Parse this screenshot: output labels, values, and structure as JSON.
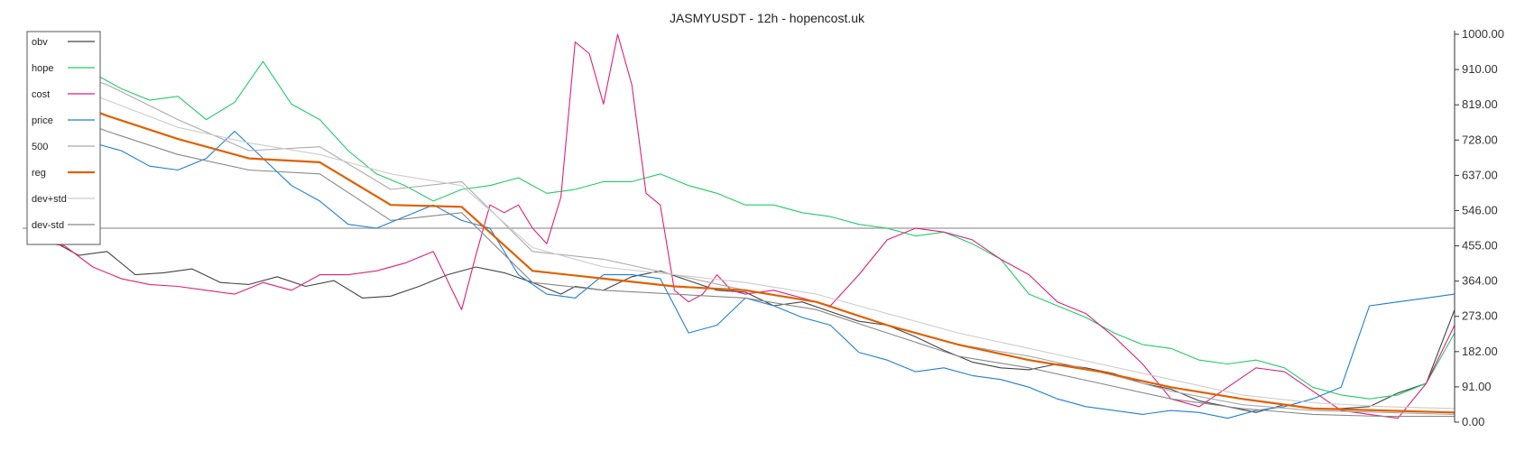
{
  "chart_data": {
    "type": "line",
    "title": "JASMYUSDT - 12h - hopencost.uk",
    "y_ticks": [
      "0.00",
      "91.00",
      "182.00",
      "273.00",
      "364.00",
      "455.00",
      "546.00",
      "637.00",
      "728.00",
      "819.00",
      "910.00",
      "1000.00"
    ],
    "ylim": [
      0,
      1000
    ],
    "xlim": [
      0,
      100
    ],
    "horizontal_line": 500,
    "legend_position": "top-left",
    "series": [
      {
        "name": "obv",
        "color": "#444444",
        "x": [
          0,
          1,
          3,
          5,
          7,
          9,
          11,
          13,
          15,
          17,
          19,
          21,
          23,
          25,
          27,
          29,
          31,
          33,
          35,
          37,
          38,
          40,
          42,
          44,
          46,
          48,
          50,
          52,
          54,
          56,
          58,
          60,
          62,
          64,
          66,
          68,
          70,
          72,
          74,
          76,
          78,
          80,
          82,
          84,
          86,
          88,
          90,
          92,
          94,
          96,
          98,
          100
        ],
        "y": [
          480,
          470,
          430,
          440,
          380,
          385,
          395,
          360,
          355,
          375,
          350,
          365,
          320,
          325,
          350,
          380,
          400,
          385,
          360,
          330,
          350,
          340,
          375,
          390,
          365,
          340,
          335,
          300,
          310,
          285,
          260,
          250,
          220,
          185,
          155,
          140,
          135,
          150,
          140,
          125,
          100,
          85,
          55,
          40,
          25,
          45,
          35,
          35,
          40,
          75,
          100,
          290
        ]
      },
      {
        "name": "hope",
        "color": "#22cc66",
        "x": [
          0,
          2,
          4,
          6,
          8,
          10,
          12,
          14,
          16,
          18,
          20,
          22,
          24,
          26,
          28,
          30,
          32,
          34,
          36,
          38,
          40,
          42,
          44,
          46,
          48,
          50,
          52,
          54,
          56,
          58,
          60,
          62,
          64,
          66,
          68,
          70,
          72,
          74,
          76,
          78,
          80,
          82,
          84,
          86,
          88,
          90,
          92,
          94,
          96,
          98,
          100
        ],
        "y": [
          950,
          920,
          900,
          860,
          830,
          840,
          780,
          825,
          930,
          820,
          780,
          700,
          640,
          610,
          570,
          600,
          610,
          630,
          590,
          600,
          620,
          620,
          640,
          610,
          590,
          560,
          560,
          540,
          530,
          510,
          500,
          480,
          490,
          460,
          420,
          330,
          300,
          270,
          230,
          200,
          190,
          160,
          150,
          160,
          140,
          90,
          70,
          60,
          70,
          100,
          230
        ]
      },
      {
        "name": "cost",
        "color": "#e0207a",
        "x": [
          0,
          1,
          2,
          4,
          6,
          8,
          10,
          12,
          14,
          16,
          18,
          20,
          22,
          24,
          26,
          28,
          30,
          31,
          32,
          33,
          34,
          35,
          36,
          37,
          38,
          39,
          40,
          41,
          42,
          43,
          44,
          45,
          46,
          47,
          48,
          49,
          50,
          52,
          54,
          56,
          58,
          60,
          62,
          64,
          66,
          68,
          70,
          72,
          74,
          76,
          78,
          80,
          82,
          84,
          86,
          88,
          90,
          92,
          94,
          96,
          98,
          100
        ],
        "y": [
          600,
          460,
          455,
          400,
          370,
          355,
          350,
          340,
          330,
          360,
          340,
          380,
          380,
          390,
          410,
          440,
          290,
          430,
          560,
          540,
          560,
          500,
          460,
          580,
          980,
          950,
          820,
          1000,
          870,
          590,
          560,
          340,
          310,
          330,
          380,
          340,
          330,
          340,
          320,
          300,
          380,
          470,
          500,
          490,
          470,
          420,
          380,
          310,
          280,
          220,
          150,
          60,
          40,
          90,
          140,
          130,
          80,
          30,
          20,
          10,
          100,
          250
        ]
      },
      {
        "name": "price",
        "color": "#1e7fd6",
        "x": [
          0,
          2,
          4,
          6,
          8,
          10,
          12,
          14,
          16,
          18,
          20,
          22,
          24,
          26,
          28,
          30,
          32,
          34,
          36,
          38,
          40,
          42,
          44,
          46,
          48,
          50,
          52,
          54,
          56,
          58,
          60,
          62,
          64,
          66,
          68,
          70,
          72,
          74,
          76,
          78,
          80,
          82,
          84,
          86,
          88,
          90,
          92,
          94,
          96,
          98,
          100
        ],
        "y": [
          790,
          770,
          720,
          700,
          660,
          650,
          680,
          750,
          680,
          610,
          570,
          510,
          500,
          530,
          560,
          520,
          500,
          380,
          330,
          320,
          380,
          380,
          370,
          230,
          250,
          320,
          300,
          270,
          250,
          180,
          160,
          130,
          140,
          120,
          110,
          90,
          60,
          40,
          30,
          20,
          30,
          25,
          10,
          30,
          40,
          60,
          90,
          300,
          310,
          320,
          330
        ]
      },
      {
        "name": "500",
        "color": "#aaaaaa",
        "x": [
          0,
          5,
          10,
          15,
          20,
          25,
          30,
          35,
          40,
          45,
          50,
          55,
          60,
          65,
          70,
          75,
          80,
          85,
          90,
          95,
          100
        ],
        "y": [
          930,
          870,
          780,
          700,
          710,
          600,
          620,
          440,
          420,
          380,
          340,
          310,
          250,
          200,
          170,
          130,
          80,
          45,
          30,
          25,
          20
        ]
      },
      {
        "name": "reg",
        "color": "#e06000",
        "x": [
          0,
          5,
          10,
          15,
          20,
          25,
          30,
          35,
          40,
          45,
          50,
          55,
          60,
          65,
          70,
          75,
          80,
          85,
          90,
          95,
          100
        ],
        "y": [
          860,
          790,
          730,
          680,
          670,
          560,
          555,
          390,
          370,
          350,
          340,
          310,
          250,
          200,
          160,
          130,
          90,
          60,
          35,
          30,
          25
        ]
      },
      {
        "name": "dev+std",
        "color": "#cccccc",
        "x": [
          0,
          5,
          10,
          15,
          20,
          25,
          30,
          35,
          40,
          45,
          50,
          55,
          60,
          65,
          70,
          75,
          80,
          85,
          90,
          95,
          100
        ],
        "y": [
          900,
          830,
          760,
          720,
          690,
          640,
          610,
          450,
          400,
          380,
          360,
          330,
          280,
          230,
          190,
          150,
          110,
          70,
          50,
          40,
          35
        ]
      },
      {
        "name": "dev-std",
        "color": "#888888",
        "x": [
          0,
          5,
          10,
          15,
          20,
          25,
          30,
          35,
          40,
          45,
          50,
          55,
          60,
          65,
          70,
          75,
          80,
          85,
          90,
          95,
          100
        ],
        "y": [
          820,
          750,
          690,
          650,
          640,
          520,
          540,
          360,
          340,
          330,
          320,
          290,
          230,
          170,
          140,
          100,
          60,
          35,
          20,
          15,
          15
        ]
      }
    ]
  }
}
